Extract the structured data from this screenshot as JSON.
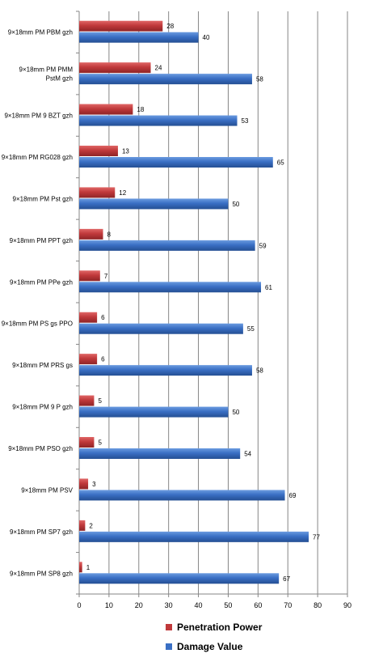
{
  "chart_data": {
    "type": "bar",
    "orientation": "horizontal",
    "title": "",
    "xlabel": "",
    "ylabel": "",
    "xlim": [
      0,
      90
    ],
    "xticks": [
      0,
      10,
      20,
      30,
      40,
      50,
      60,
      70,
      80,
      90
    ],
    "grid": "vertical",
    "legend_position": "bottom",
    "categories": [
      "9×18mm PM PBM gzh",
      "9×18mm PM PMM PstM gzh",
      "9×18mm PM 9 BZT gzh",
      "9×18mm PM RG028 gzh",
      "9×18mm PM Pst gzh",
      "9×18mm PM PPT gzh",
      "9×18mm PM PPe gzh",
      "9×18mm PM PS gs PPO",
      "9×18mm PM PRS gs",
      "9×18mm PM 9 P gzh",
      "9×18mm PM PSO gzh",
      "9×18mm PM PSV",
      "9×18mm PM SP7 gzh",
      "9×18mm PM SP8 gzh"
    ],
    "series": [
      {
        "name": "Penetration Power",
        "color": "#c0393b",
        "values": [
          28,
          24,
          18,
          13,
          12,
          8,
          7,
          6,
          6,
          5,
          5,
          3,
          2,
          1
        ]
      },
      {
        "name": "Damage Value",
        "color": "#3a6fc4",
        "values": [
          40,
          58,
          53,
          65,
          50,
          59,
          61,
          55,
          58,
          50,
          54,
          69,
          77,
          67
        ]
      }
    ]
  }
}
